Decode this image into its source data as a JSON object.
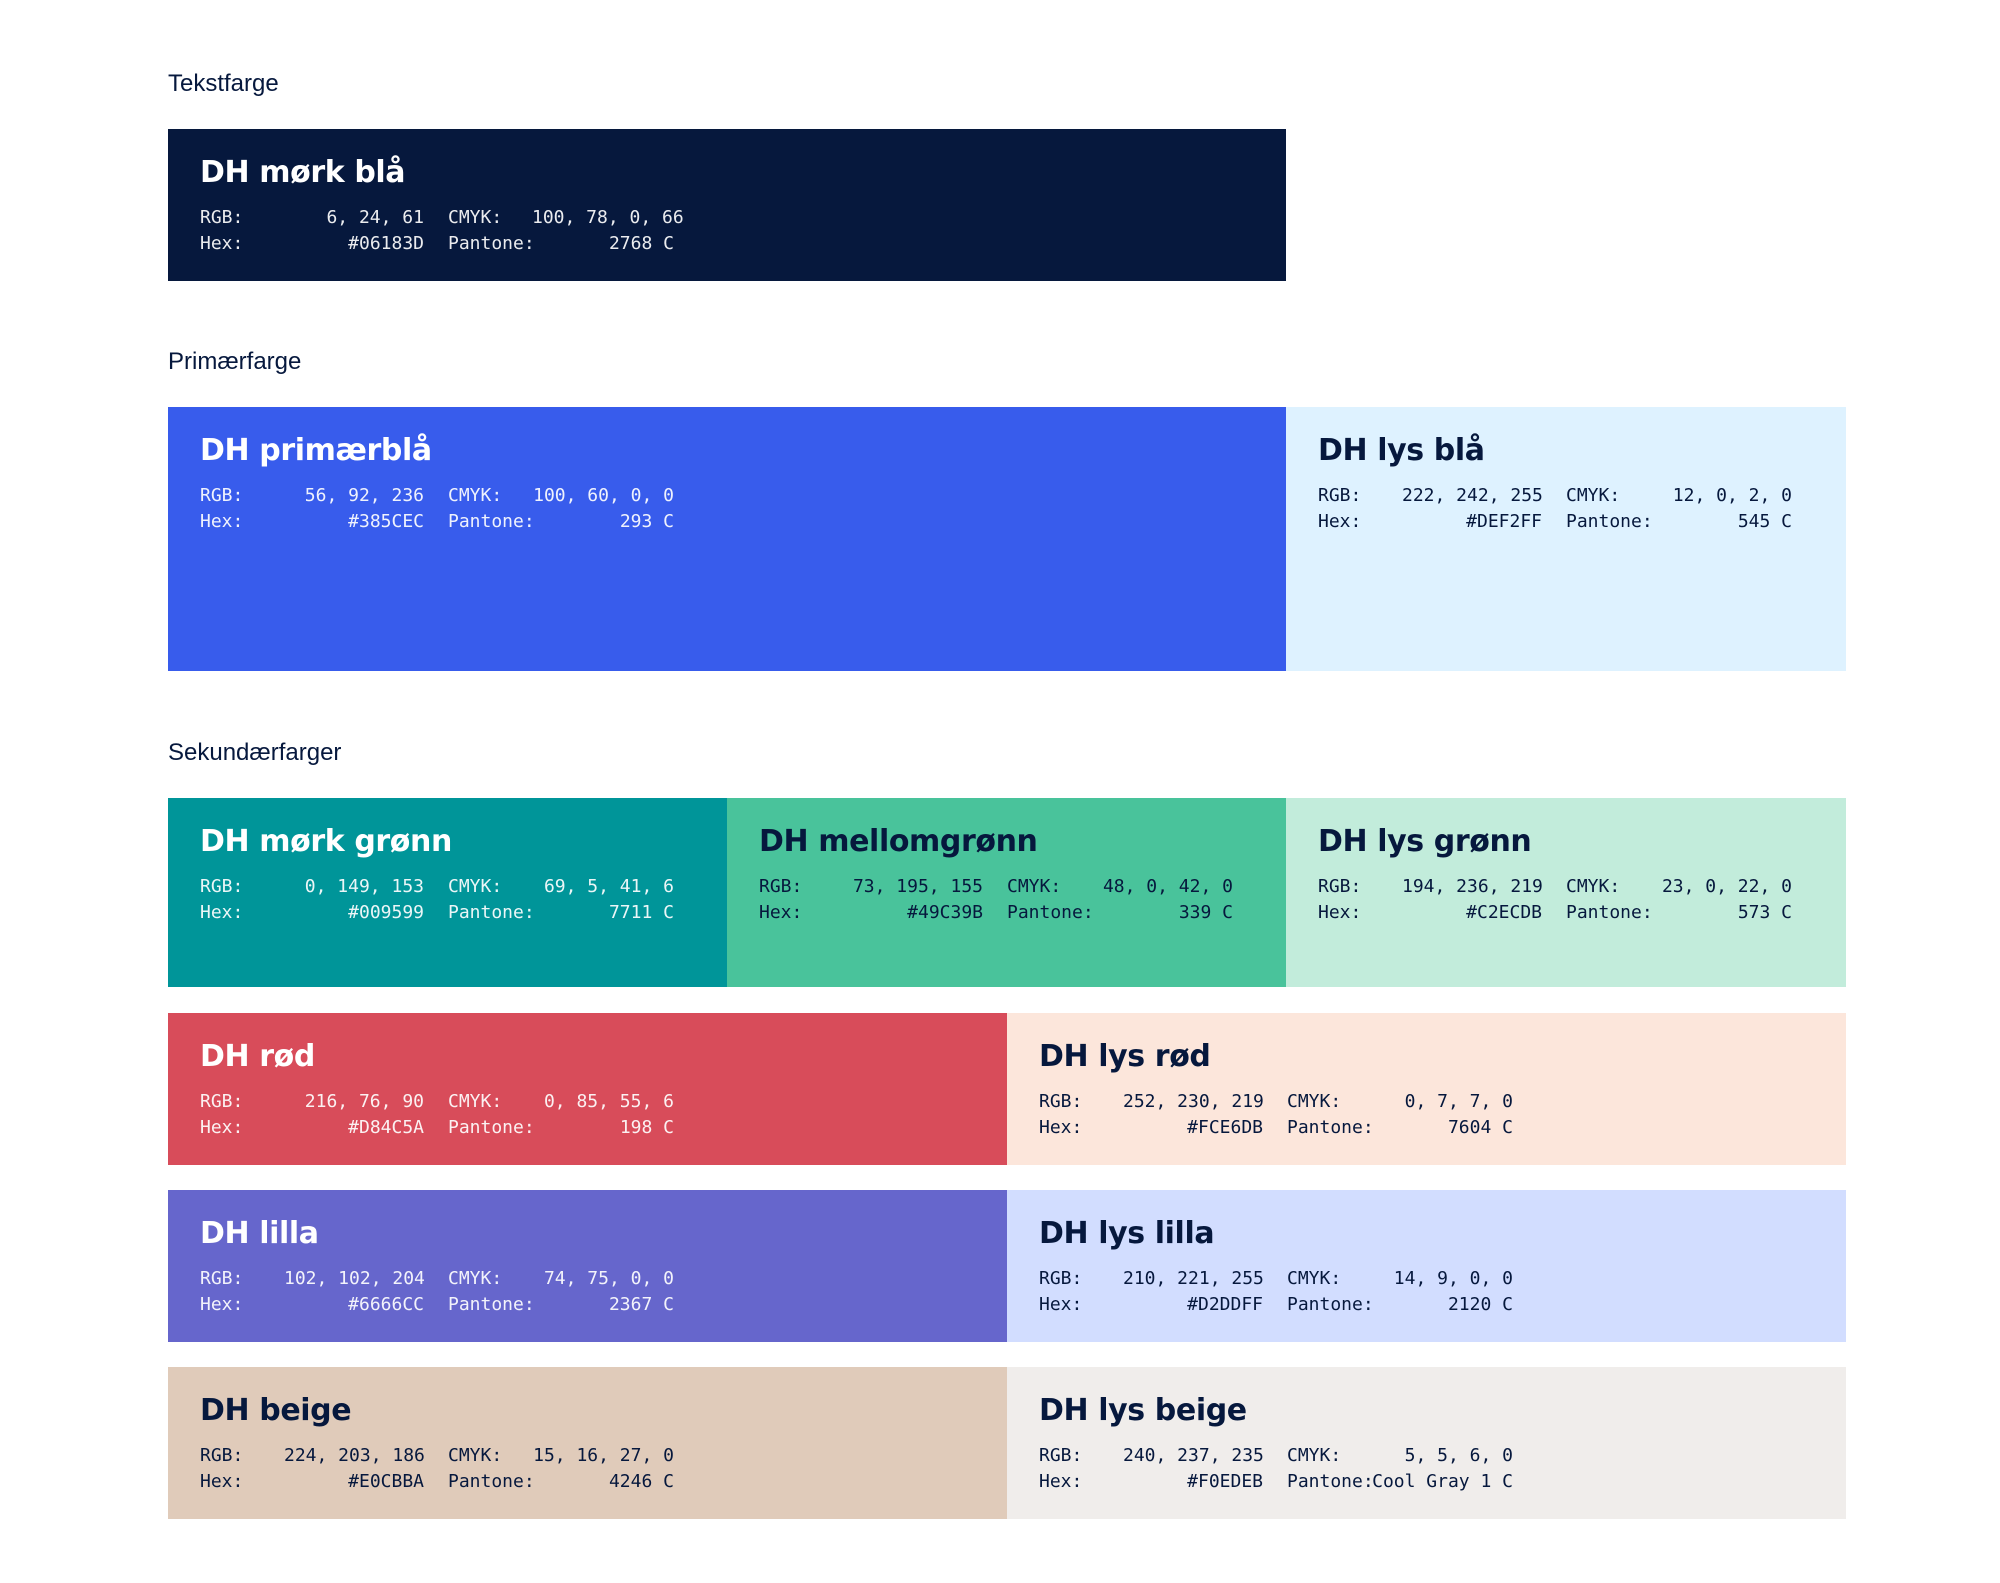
{
  "sections": {
    "text": "Tekstfarge",
    "primary": "Primærfarge",
    "secondary": "Sekundærfarger"
  },
  "labels": {
    "rgb": "RGB:",
    "hex": "Hex:",
    "cmyk": "CMYK:",
    "pantone": "Pantone:"
  },
  "swatches": {
    "mork_bla": {
      "name": "DH mørk blå",
      "rgb": "6, 24, 61",
      "hex": "#06183D",
      "cmyk": "100, 78, 0, 66",
      "pantone": "2768 C",
      "color": "#06183D"
    },
    "primaerbla": {
      "name": "DH primærblå",
      "rgb": "56, 92, 236",
      "hex": "#385CEC",
      "cmyk": "100, 60, 0, 0",
      "pantone": "293 C",
      "color": "#385CEC"
    },
    "lys_bla": {
      "name": "DH lys blå",
      "rgb": "222, 242, 255",
      "hex": "#DEF2FF",
      "cmyk": "12, 0, 2, 0",
      "pantone": "545 C",
      "color": "#DEF2FF"
    },
    "mork_gronn": {
      "name": "DH mørk grønn",
      "rgb": "0, 149, 153",
      "hex": "#009599",
      "cmyk": "69, 5, 41, 6",
      "pantone": "7711 C",
      "color": "#009599"
    },
    "mellomgronn": {
      "name": "DH mellomgrønn",
      "rgb": "73, 195, 155",
      "hex": "#49C39B",
      "cmyk": "48, 0, 42, 0",
      "pantone": "339 C",
      "color": "#49C39B"
    },
    "lys_gronn": {
      "name": "DH lys grønn",
      "rgb": "194, 236, 219",
      "hex": "#C2ECDB",
      "cmyk": "23, 0, 22, 0",
      "pantone": "573 C",
      "color": "#C2ECDB"
    },
    "rod": {
      "name": "DH rød",
      "rgb": "216, 76, 90",
      "hex": "#D84C5A",
      "cmyk": "0, 85, 55, 6",
      "pantone": "198 C",
      "color": "#D84C5A"
    },
    "lys_rod": {
      "name": "DH lys rød",
      "rgb": "252, 230, 219",
      "hex": "#FCE6DB",
      "cmyk": "0, 7, 7, 0",
      "pantone": "7604 C",
      "color": "#FCE6DB"
    },
    "lilla": {
      "name": "DH lilla",
      "rgb": "102, 102, 204",
      "hex": "#6666CC",
      "cmyk": "74, 75, 0, 0",
      "pantone": "2367 C",
      "color": "#6666CC"
    },
    "lys_lilla": {
      "name": "DH lys lilla",
      "rgb": "210, 221, 255",
      "hex": "#D2DDFF",
      "cmyk": "14, 9, 0, 0",
      "pantone": "2120 C",
      "color": "#D2DDFF"
    },
    "beige": {
      "name": "DH beige",
      "rgb": "224, 203, 186",
      "hex": "#E0CBBA",
      "cmyk": "15, 16, 27, 0",
      "pantone": "4246 C",
      "color": "#E0CBBA"
    },
    "lys_beige": {
      "name": "DH lys beige",
      "rgb": "240, 237, 235",
      "hex": "#F0EDEB",
      "cmyk": "5, 5, 6, 0",
      "pantone": "Cool Gray 1 C",
      "color": "#F0EDEB"
    }
  }
}
